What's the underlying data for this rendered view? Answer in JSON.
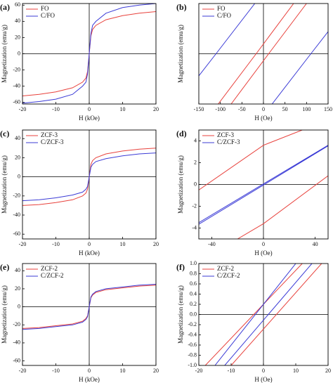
{
  "chart_data": [
    {
      "type": "line",
      "panel_label": "(a)",
      "xlabel": "H (kOe)",
      "ylabel": "Magnetization (emu/g)",
      "xlim": [
        -20,
        20
      ],
      "xticks": [
        -20,
        -10,
        0,
        10,
        20
      ],
      "ylim": [
        -62,
        62
      ],
      "yticks": [
        -60,
        -40,
        -20,
        0,
        20,
        40,
        60
      ],
      "legend": "upper left",
      "series": [
        {
          "name": "FO",
          "color": "#e8413c",
          "x": [
            -20,
            -15,
            -10,
            -5,
            -2,
            -1,
            -0.5,
            0,
            0.5,
            1,
            2,
            5,
            10,
            15,
            20
          ],
          "values": [
            -52,
            -50,
            -47,
            -42,
            -35,
            -30,
            -22,
            0,
            22,
            30,
            35,
            42,
            47,
            50,
            52
          ]
        },
        {
          "name": "C/FO",
          "color": "#3b3bd6",
          "x": [
            -20,
            -15,
            -10,
            -5,
            -2,
            -1,
            -0.5,
            0,
            0.5,
            1,
            2,
            5,
            10,
            15,
            20
          ],
          "values": [
            -61,
            -59,
            -56,
            -50,
            -40,
            -35,
            -25,
            0,
            25,
            35,
            40,
            50,
            57,
            60,
            62
          ]
        }
      ]
    },
    {
      "type": "line",
      "panel_label": "(b)",
      "xlabel": "H (Oe)",
      "ylabel": "Magnetization (emu/g)",
      "xlim": [
        -150,
        150
      ],
      "xticks": [
        -150,
        -100,
        -50,
        0,
        50,
        100,
        150
      ],
      "ylim": [
        -10,
        10
      ],
      "legend": "upper left",
      "series": [
        {
          "name": "FO",
          "color": "#e8413c",
          "x": [
            -105,
            -17,
            70,
            null,
            100,
            12,
            -75
          ],
          "values": [
            -10,
            0,
            10,
            null,
            10,
            0,
            -10
          ]
        },
        {
          "name": "C/FO",
          "color": "#3b3bd6",
          "x": [
            -150,
            -110,
            -20,
            null,
            20,
            110,
            150
          ],
          "values": [
            -4.4,
            0,
            10,
            null,
            -10,
            0,
            4.4
          ]
        }
      ]
    },
    {
      "type": "line",
      "panel_label": "(c)",
      "xlabel": "H (kOe)",
      "ylabel": "Magnetization (emu/g)",
      "xlim": [
        -20,
        20
      ],
      "xticks": [
        -20,
        -10,
        0,
        10,
        20
      ],
      "ylim": [
        -65,
        49
      ],
      "yticks": [
        -60,
        -40,
        -20,
        0,
        20,
        40
      ],
      "legend": "upper left",
      "series": [
        {
          "name": "ZCF-3",
          "color": "#e8413c",
          "x": [
            -20,
            -15,
            -10,
            -5,
            -2,
            -1,
            -0.5,
            0,
            0.5,
            1,
            2,
            5,
            10,
            15,
            20
          ],
          "values": [
            -30,
            -29,
            -27,
            -24,
            -20,
            -17,
            -13,
            0,
            13,
            17,
            20,
            24,
            27,
            29,
            30
          ]
        },
        {
          "name": "C/ZCF-3",
          "color": "#3b3bd6",
          "x": [
            -20,
            -15,
            -10,
            -5,
            -2,
            -1,
            -0.5,
            0,
            0.5,
            1,
            2,
            5,
            10,
            15,
            20
          ],
          "values": [
            -25,
            -24,
            -22,
            -19,
            -16,
            -13,
            -10,
            0,
            10,
            13,
            16,
            19,
            22,
            24,
            25
          ]
        }
      ]
    },
    {
      "type": "line",
      "panel_label": "(d)",
      "xlabel": "H (Oe)",
      "ylabel": "Magnetization (emu/g)",
      "xlim": [
        -50,
        50
      ],
      "xticks": [
        -40,
        0,
        40
      ],
      "ylim": [
        -5,
        5
      ],
      "yticks": [
        -4,
        -2,
        0,
        2,
        4
      ],
      "legend": "upper left",
      "series": [
        {
          "name": "ZCF-3",
          "color": "#e8413c",
          "x": [
            -50,
            0,
            30,
            null,
            -20,
            0,
            50
          ],
          "values": [
            -0.5,
            3.6,
            5,
            null,
            -5,
            -3.6,
            0.8
          ]
        },
        {
          "name": "C/ZCF-3",
          "color": "#3b3bd6",
          "x": [
            -50,
            0,
            50,
            null,
            50,
            0,
            -50
          ],
          "values": [
            -3.5,
            0.05,
            3.6,
            null,
            3.55,
            -0.05,
            -3.65
          ]
        }
      ]
    },
    {
      "type": "line",
      "panel_label": "(e)",
      "xlabel": "H (kOe)",
      "ylabel": "Magnetization (emu/g)",
      "xlim": [
        -20,
        20
      ],
      "xticks": [
        -20,
        -10,
        0,
        10,
        20
      ],
      "ylim": [
        -65,
        48
      ],
      "yticks": [
        -60,
        -40,
        -20,
        0,
        20,
        40
      ],
      "legend": "upper left",
      "series": [
        {
          "name": "ZCF-2",
          "color": "#e8413c",
          "x": [
            -20,
            -15,
            -10,
            -5,
            -2,
            -1,
            -0.5,
            0,
            0.5,
            1,
            2,
            5,
            10,
            15,
            20
          ],
          "values": [
            -24,
            -23,
            -21,
            -19,
            -16,
            -13,
            -10,
            0,
            10,
            13,
            16,
            19,
            21,
            23,
            24
          ]
        },
        {
          "name": "C/ZCF-2",
          "color": "#3b3bd6",
          "x": [
            -20,
            -15,
            -10,
            -5,
            -2,
            -1,
            -0.5,
            0,
            0.5,
            1,
            2,
            5,
            10,
            15,
            20
          ],
          "values": [
            -25,
            -24,
            -22,
            -20,
            -17,
            -14,
            -11,
            0,
            11,
            14,
            17,
            20,
            22,
            24,
            25
          ]
        }
      ]
    },
    {
      "type": "line",
      "panel_label": "(f)",
      "xlabel": "H (Oe)",
      "ylabel": "Magnetization (emu/g)",
      "xlim": [
        -20,
        20
      ],
      "xticks": [
        -20,
        -10,
        0,
        10,
        20
      ],
      "ylim": [
        -1,
        1
      ],
      "yticks": [
        {
          "value": -1,
          "label": "-1.0"
        },
        {
          "value": -0.8,
          "label": "-0.8"
        },
        {
          "value": -0.6,
          "label": "-0.6"
        },
        {
          "value": -0.4,
          "label": "-0.4"
        },
        {
          "value": -0.2,
          "label": "-0.2"
        },
        {
          "value": 0,
          "label": "0.0"
        },
        {
          "value": 0.2,
          "label": "0.2"
        },
        {
          "value": 0.4,
          "label": "0.4"
        },
        {
          "value": 0.6,
          "label": "0.6"
        },
        {
          "value": 0.8,
          "label": "0.8"
        },
        {
          "value": 1,
          "label": "1.0"
        }
      ],
      "legend": "upper left",
      "series": [
        {
          "name": "ZCF-2",
          "color": "#e8413c",
          "x": [
            -18,
            12,
            null,
            18,
            -10
          ],
          "values": [
            -1,
            1,
            null,
            1,
            -1
          ]
        },
        {
          "name": "C/ZCF-2",
          "color": "#3b3bd6",
          "x": [
            -15,
            10,
            null,
            15,
            -12
          ],
          "values": [
            -1,
            1,
            null,
            1,
            -1
          ]
        }
      ]
    }
  ]
}
